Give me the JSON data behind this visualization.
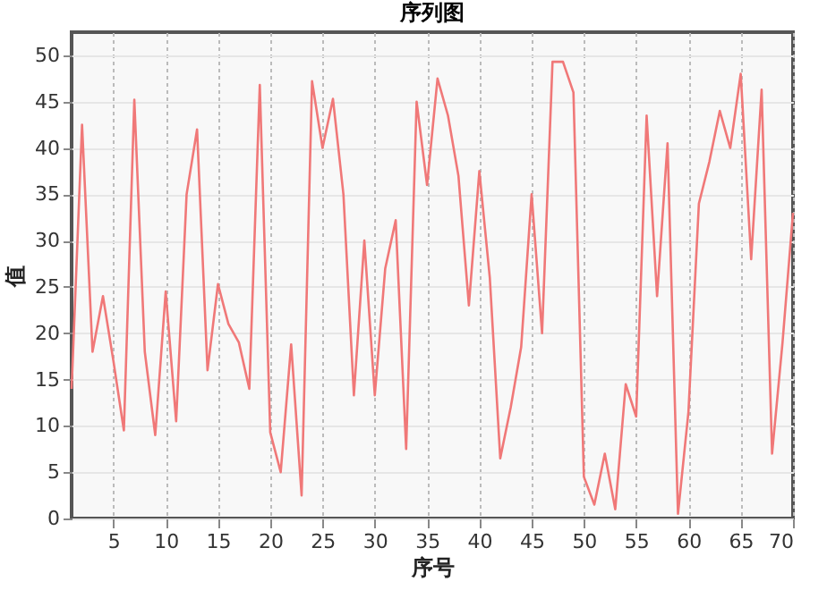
{
  "chart_data": {
    "type": "line",
    "title": "序列图",
    "xlabel": "序号",
    "ylabel": "值",
    "x": [
      1,
      2,
      3,
      4,
      5,
      6,
      7,
      8,
      9,
      10,
      11,
      12,
      13,
      14,
      15,
      16,
      17,
      18,
      19,
      20,
      21,
      22,
      23,
      24,
      25,
      26,
      27,
      28,
      29,
      30,
      31,
      32,
      33,
      34,
      35,
      36,
      37,
      38,
      39,
      40,
      41,
      42,
      43,
      44,
      45,
      46,
      47,
      48,
      49,
      50,
      51,
      52,
      53,
      54,
      55,
      56,
      57,
      58,
      59,
      60,
      61,
      62,
      63,
      64,
      65,
      66,
      67,
      68,
      69,
      70
    ],
    "series": [
      {
        "color": "#f07878",
        "values": [
          14,
          42.5,
          18,
          24,
          17,
          9.5,
          45.2,
          18,
          9,
          24.5,
          10.5,
          35,
          42,
          16,
          25.3,
          21,
          19,
          14,
          46.8,
          9.3,
          5,
          18.8,
          2.5,
          47.2,
          40,
          45.3,
          35,
          13.3,
          30,
          13.3,
          27,
          32.2,
          7.5,
          45,
          36,
          47.5,
          43.5,
          37,
          23,
          37.5,
          26,
          6.5,
          12,
          18.5,
          35,
          20,
          49.3,
          49.3,
          46,
          4.5,
          1.5,
          7,
          1,
          14.5,
          11,
          43.5,
          24,
          40.5,
          0.5,
          11.5,
          34,
          38.5,
          44,
          40,
          48,
          28,
          46.3,
          7,
          19,
          33
        ]
      }
    ],
    "xlim": [
      1,
      70
    ],
    "xticks": [
      5,
      10,
      15,
      20,
      25,
      30,
      35,
      40,
      45,
      50,
      55,
      60,
      65,
      70
    ],
    "ylim": [
      0,
      52.5
    ],
    "yticks": [
      0,
      5,
      10,
      15,
      20,
      25,
      30,
      35,
      40,
      45,
      50
    ],
    "grid": true,
    "marker": "none",
    "line_style": "solid"
  }
}
